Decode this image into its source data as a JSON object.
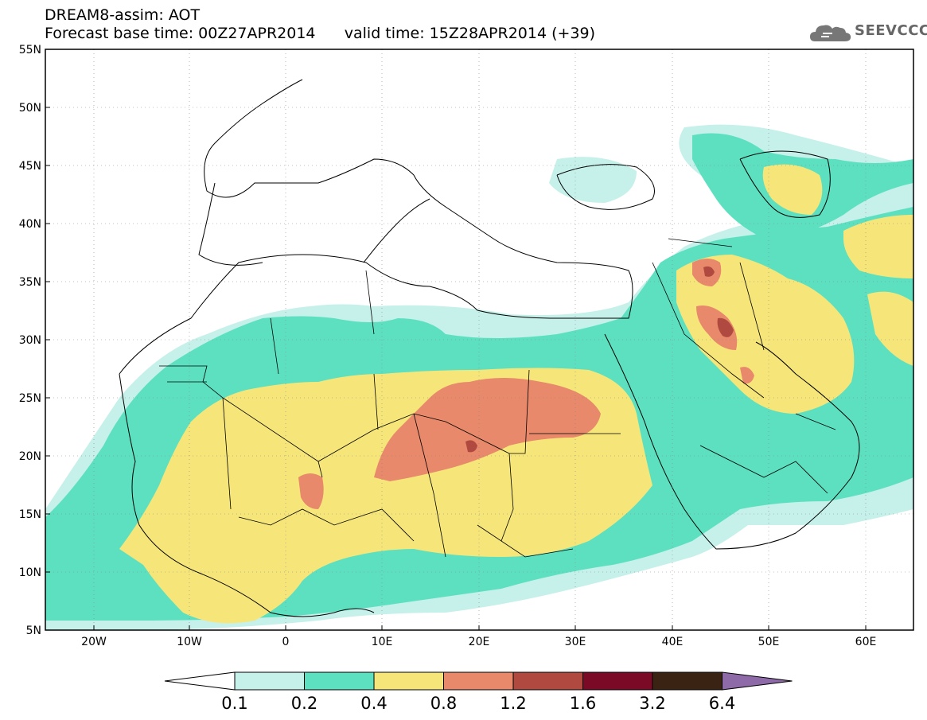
{
  "header": {
    "title": "DREAM8-assim: AOT",
    "base_time_label": "Forecast base time: 00Z27APR2014",
    "valid_time_label": "valid time: 15Z28APR2014 (+39)"
  },
  "logo": {
    "icon": "cloud-icon",
    "text": "SEEVCCC"
  },
  "map": {
    "lat_labels": [
      "55N",
      "50N",
      "45N",
      "40N",
      "35N",
      "30N",
      "25N",
      "20N",
      "15N",
      "10N",
      "5N"
    ],
    "lon_labels": [
      "20W",
      "10W",
      "0",
      "10E",
      "20E",
      "30E",
      "40E",
      "50E",
      "60E"
    ],
    "lon_range": [
      -25,
      65
    ],
    "lat_range": [
      5,
      55
    ]
  },
  "colorbar": {
    "values": [
      "0.1",
      "0.2",
      "0.4",
      "0.8",
      "1.2",
      "1.6",
      "3.2",
      "6.4"
    ],
    "colors": [
      "#ffffff",
      "#c6f0ea",
      "#5ce0c0",
      "#f6e67a",
      "#e7896a",
      "#b04a40",
      "#7a0a26",
      "#3b2314",
      "#8f6aa8"
    ]
  }
}
